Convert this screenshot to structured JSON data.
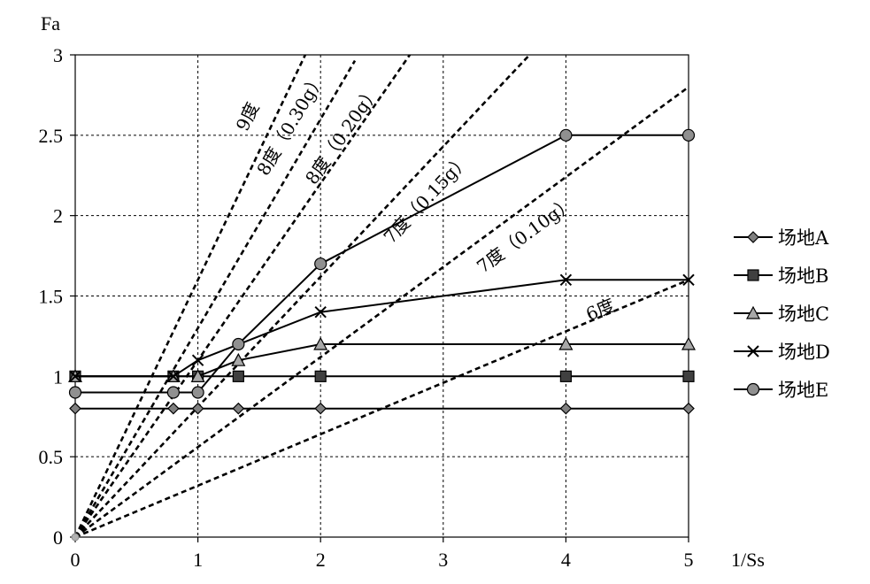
{
  "chart_data": {
    "type": "line",
    "xlabel": "1/Ss",
    "ylabel": "Fa",
    "xlim": [
      0,
      5
    ],
    "ylim": [
      0,
      3
    ],
    "x_ticks": [
      0,
      1,
      2,
      3,
      4,
      5
    ],
    "y_ticks": [
      0,
      0.5,
      1,
      1.5,
      2,
      2.5,
      3
    ],
    "x_tick_labels": [
      "0",
      "1",
      "2",
      "3",
      "4",
      "5"
    ],
    "y_tick_labels": [
      "0",
      "0.5",
      "1",
      "1.5",
      "2",
      "2.5",
      "3"
    ],
    "grid": true,
    "legend_position": "right",
    "series": [
      {
        "name": "场地A",
        "marker": "diamond",
        "x": [
          0,
          0.8,
          1,
          1.33,
          2,
          4,
          5
        ],
        "y": [
          0.8,
          0.8,
          0.8,
          0.8,
          0.8,
          0.8,
          0.8
        ]
      },
      {
        "name": "场地B",
        "marker": "square",
        "x": [
          0,
          0.8,
          1,
          1.33,
          2,
          4,
          5
        ],
        "y": [
          1.0,
          1.0,
          1.0,
          1.0,
          1.0,
          1.0,
          1.0
        ]
      },
      {
        "name": "场地C",
        "marker": "triangle",
        "x": [
          0,
          0.8,
          1,
          1.33,
          2,
          4,
          5
        ],
        "y": [
          1.0,
          1.0,
          1.0,
          1.1,
          1.2,
          1.2,
          1.2
        ]
      },
      {
        "name": "场地D",
        "marker": "x",
        "x": [
          0,
          0.8,
          1,
          2,
          4,
          5
        ],
        "y": [
          1.0,
          1.0,
          1.1,
          1.4,
          1.6,
          1.6
        ]
      },
      {
        "name": "场地E",
        "marker": "circle",
        "x": [
          0,
          0.8,
          1,
          1.33,
          2,
          4,
          5
        ],
        "y": [
          0.9,
          0.9,
          0.9,
          1.2,
          1.7,
          2.5,
          2.5
        ]
      }
    ],
    "reference_lines": [
      {
        "label": "9度",
        "slope": 1.6,
        "x_end": 1.88
      },
      {
        "label": "8度（0.30g）",
        "slope": 1.3,
        "x_end": 2.28
      },
      {
        "label": "8度（0.20g）",
        "slope": 1.1,
        "x_end": 2.95
      },
      {
        "label": "7度（0.15g）",
        "slope": 0.81,
        "x_end": 3.82
      },
      {
        "label": "7度（0.10g）",
        "slope": 0.56,
        "x_end": 5.0
      },
      {
        "label": "6度",
        "slope": 0.32,
        "x_end": 5.0
      }
    ]
  }
}
